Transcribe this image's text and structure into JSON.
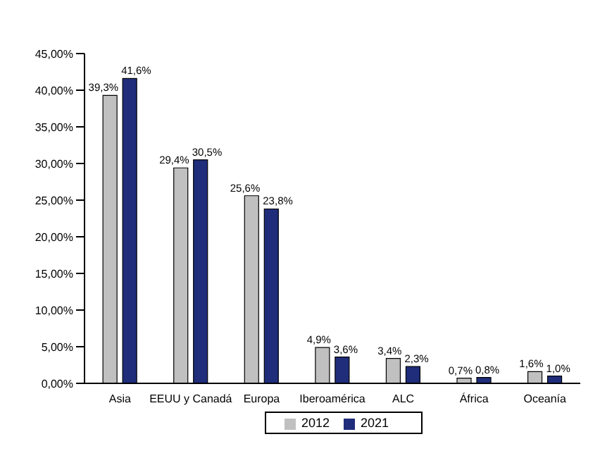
{
  "chart_data": {
    "type": "bar",
    "categories": [
      "Asia",
      "EEUU y Canadá",
      "Europa",
      "Iberoamérica",
      "ALC",
      "África",
      "Oceanía"
    ],
    "series": [
      {
        "name": "2012",
        "color": "#c0c0c0",
        "values": [
          39.3,
          29.4,
          25.6,
          4.9,
          3.4,
          0.7,
          1.6
        ],
        "value_labels": [
          "39,3%",
          "29,4%",
          "25,6%",
          "4,9%",
          "3,4%",
          "0,7%",
          "1,6%"
        ]
      },
      {
        "name": "2021",
        "color": "#1f2d7a",
        "values": [
          41.6,
          30.5,
          23.8,
          3.6,
          2.3,
          0.8,
          1.0
        ],
        "value_labels": [
          "41,6%",
          "30,5%",
          "23,8%",
          "3,6%",
          "2,3%",
          "0,8%",
          "1,0%"
        ]
      }
    ],
    "ylim": [
      0,
      45
    ],
    "yticks": [
      {
        "value": 0,
        "label": "0,00%"
      },
      {
        "value": 5,
        "label": "5,00%"
      },
      {
        "value": 10,
        "label": "10,00%"
      },
      {
        "value": 15,
        "label": "15,00%"
      },
      {
        "value": 20,
        "label": "20,00%"
      },
      {
        "value": 25,
        "label": "25,00%"
      },
      {
        "value": 30,
        "label": "30,00%"
      },
      {
        "value": 35,
        "label": "35,00%"
      },
      {
        "value": 40,
        "label": "40,00%"
      },
      {
        "value": 45,
        "label": "45,00%"
      }
    ],
    "grid": false,
    "legend": "bottom"
  }
}
